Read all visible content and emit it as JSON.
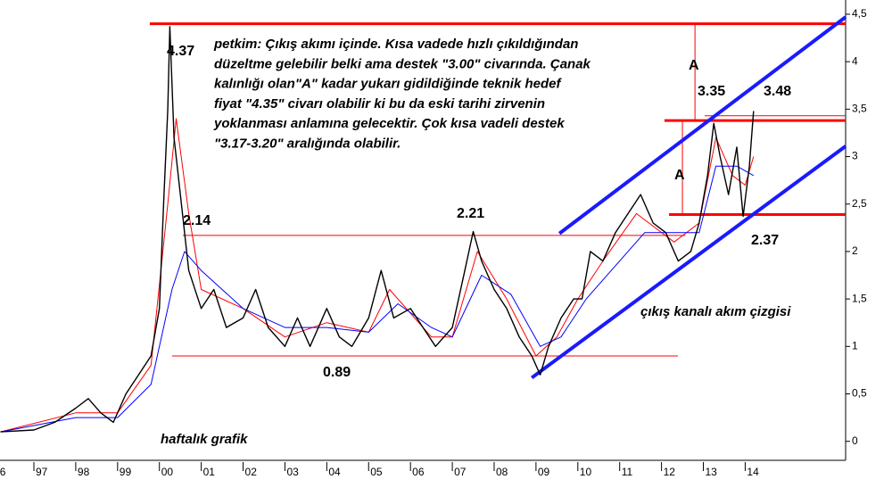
{
  "chart_data": {
    "type": "line",
    "xlim": [
      1996.19,
      2016.4
    ],
    "ylim": [
      -0.2,
      4.65
    ],
    "xticks": [
      {
        "value": 1996,
        "label": "96"
      },
      {
        "value": 1997,
        "label": "97"
      },
      {
        "value": 1998,
        "label": "98"
      },
      {
        "value": 1999,
        "label": "99"
      },
      {
        "value": 2000,
        "label": "00"
      },
      {
        "value": 2001,
        "label": "01"
      },
      {
        "value": 2002,
        "label": "02"
      },
      {
        "value": 2003,
        "label": "03"
      },
      {
        "value": 2004,
        "label": "04"
      },
      {
        "value": 2005,
        "label": "05"
      },
      {
        "value": 2006,
        "label": "06"
      },
      {
        "value": 2007,
        "label": "07"
      },
      {
        "value": 2008,
        "label": "08"
      },
      {
        "value": 2009,
        "label": "09"
      },
      {
        "value": 2010,
        "label": "10"
      },
      {
        "value": 2011,
        "label": "11"
      },
      {
        "value": 2012,
        "label": "12"
      },
      {
        "value": 2013,
        "label": "13"
      },
      {
        "value": 2014,
        "label": "14"
      }
    ],
    "yticks": [
      0,
      {
        "value": 0.5,
        "label": "0,5"
      },
      1,
      {
        "value": 1.5,
        "label": "1,5"
      },
      2,
      {
        "value": 2.5,
        "label": "2,5"
      },
      3,
      {
        "value": 3.5,
        "label": "3,5"
      },
      4,
      {
        "value": 4.5,
        "label": "4,5"
      }
    ],
    "grid": false,
    "series": [
      {
        "color": "#000000",
        "x": [
          1996.2,
          1997.0,
          1997.5,
          1998.0,
          1998.3,
          1998.6,
          1998.9,
          1999.2,
          1999.5,
          1999.8,
          2000.0,
          2000.1,
          2000.2,
          2000.25,
          2000.35,
          2000.5,
          2000.7,
          2001.0,
          2001.3,
          2001.6,
          2002.0,
          2002.3,
          2002.6,
          2003.0,
          2003.3,
          2003.6,
          2004.0,
          2004.3,
          2004.6,
          2005.0,
          2005.3,
          2005.6,
          2006.0,
          2006.3,
          2006.6,
          2007.0,
          2007.3,
          2007.5,
          2007.7,
          2008.0,
          2008.3,
          2008.6,
          2008.9,
          2009.1,
          2009.3,
          2009.6,
          2009.9,
          2010.1,
          2010.3,
          2010.6,
          2010.9,
          2011.2,
          2011.5,
          2011.8,
          2012.1,
          2012.4,
          2012.7,
          2012.9,
          2013.1,
          2013.25,
          2013.4,
          2013.6,
          2013.8,
          2013.95,
          2014.1,
          2014.2
        ],
        "values": [
          0.1,
          0.12,
          0.2,
          0.35,
          0.45,
          0.3,
          0.2,
          0.5,
          0.7,
          0.9,
          1.4,
          2.5,
          3.5,
          4.37,
          3.2,
          2.6,
          1.8,
          1.4,
          1.6,
          1.2,
          1.3,
          1.6,
          1.2,
          1.0,
          1.3,
          1.0,
          1.4,
          1.1,
          1.0,
          1.3,
          1.8,
          1.3,
          1.4,
          1.2,
          1.0,
          1.2,
          1.8,
          2.21,
          1.9,
          1.6,
          1.4,
          1.1,
          0.9,
          0.7,
          1.0,
          1.3,
          1.5,
          1.5,
          2.0,
          1.9,
          2.2,
          2.4,
          2.6,
          2.3,
          2.2,
          1.9,
          2.0,
          2.3,
          2.8,
          3.35,
          3.0,
          2.6,
          3.1,
          2.37,
          2.9,
          3.48
        ]
      },
      {
        "color": "#ff0000",
        "x": [
          1996.2,
          1998.0,
          1999.0,
          1999.8,
          2000.2,
          2000.4,
          2000.7,
          2001.0,
          2002.0,
          2003.0,
          2004.0,
          2005.0,
          2005.5,
          2006.5,
          2007.0,
          2007.6,
          2008.3,
          2009.0,
          2009.5,
          2010.0,
          2010.6,
          2011.4,
          2012.3,
          2012.9,
          2013.3,
          2013.7,
          2014.0,
          2014.2
        ],
        "values": [
          0.1,
          0.3,
          0.3,
          0.8,
          2.5,
          3.4,
          2.4,
          1.6,
          1.4,
          1.1,
          1.25,
          1.15,
          1.6,
          1.1,
          1.1,
          2.0,
          1.5,
          0.9,
          1.1,
          1.5,
          1.9,
          2.4,
          2.1,
          2.3,
          3.2,
          2.8,
          2.7,
          3.0
        ]
      },
      {
        "color": "#0000ff",
        "x": [
          1996.2,
          1998.0,
          1999.0,
          1999.8,
          2000.3,
          2000.6,
          2001.0,
          2002.0,
          2003.0,
          2004.0,
          2005.0,
          2005.7,
          2006.5,
          2007.0,
          2007.7,
          2008.4,
          2009.1,
          2009.6,
          2010.2,
          2010.8,
          2011.6,
          2012.4,
          2012.9,
          2013.3,
          2013.8,
          2014.2
        ],
        "values": [
          0.1,
          0.25,
          0.25,
          0.6,
          1.6,
          2.0,
          1.8,
          1.4,
          1.2,
          1.2,
          1.15,
          1.45,
          1.2,
          1.1,
          1.75,
          1.55,
          1.0,
          1.1,
          1.5,
          1.8,
          2.2,
          2.2,
          2.2,
          2.9,
          2.9,
          2.8
        ]
      }
    ],
    "reference_lines": [
      {
        "x": [
          1999.77,
          2016.4
        ],
        "y": [
          4.4,
          4.4
        ],
        "color": "#ff0000",
        "weight": "bold"
      },
      {
        "x": [
          2000.56,
          2012.57
        ],
        "y": [
          2.17,
          2.17
        ],
        "color": "#ff0000",
        "weight": "thin"
      },
      {
        "x": [
          2000.3,
          2012.39
        ],
        "y": [
          0.9,
          0.9
        ],
        "color": "#ff0000",
        "weight": "thin"
      },
      {
        "x": [
          2012.07,
          2016.4
        ],
        "y": [
          3.38,
          3.38
        ],
        "color": "#ff0000",
        "weight": "bold"
      },
      {
        "x": [
          2013.03,
          2016.4
        ],
        "y": [
          3.43,
          3.43
        ],
        "color": "#ff0000",
        "weight": "thin"
      },
      {
        "x": [
          2012.18,
          2016.4
        ],
        "y": [
          2.39,
          2.39
        ],
        "color": "#ff0000",
        "weight": "bold"
      },
      {
        "x": [
          2012.8,
          2012.8
        ],
        "y": [
          4.4,
          3.38
        ],
        "color": "#ff0000",
        "weight": "thin"
      },
      {
        "x": [
          2012.5,
          2012.5
        ],
        "y": [
          3.38,
          2.39
        ],
        "color": "#ff0000",
        "weight": "thin"
      },
      {
        "x": [
          2009.56,
          2016.4
        ],
        "y": [
          2.19,
          4.47
        ],
        "color": "#1a1aff",
        "weight": "bold"
      },
      {
        "x": [
          2008.9,
          2016.4
        ],
        "y": [
          0.67,
          3.11
        ],
        "color": "#1a1aff",
        "weight": "bold"
      }
    ],
    "annotations": [
      "4.37",
      "2.14",
      "2.21",
      "0.89",
      "3.35",
      "3.48",
      "2.37",
      "A",
      "A",
      "çıkış kanalı akım çizgisi",
      "haftalık grafik"
    ],
    "note_lines": [
      "petkim: Çıkış akımı içinde. Kısa vadede hızlı çıkıldığından",
      "düzeltme gelebilir belki ama destek \"3.00\" civarında. Çanak",
      "kalınlığı olan\"A\" kadar yukarı gidildiğinde teknik hedef",
      "fiyat \"4.35\" civarı olabilir ki bu da eski tarihi zirvenin",
      "yoklanması anlamına gelecektir. Çok kısa vadeli destek",
      "\"3.17-3.20\" aralığında olabilir."
    ]
  }
}
